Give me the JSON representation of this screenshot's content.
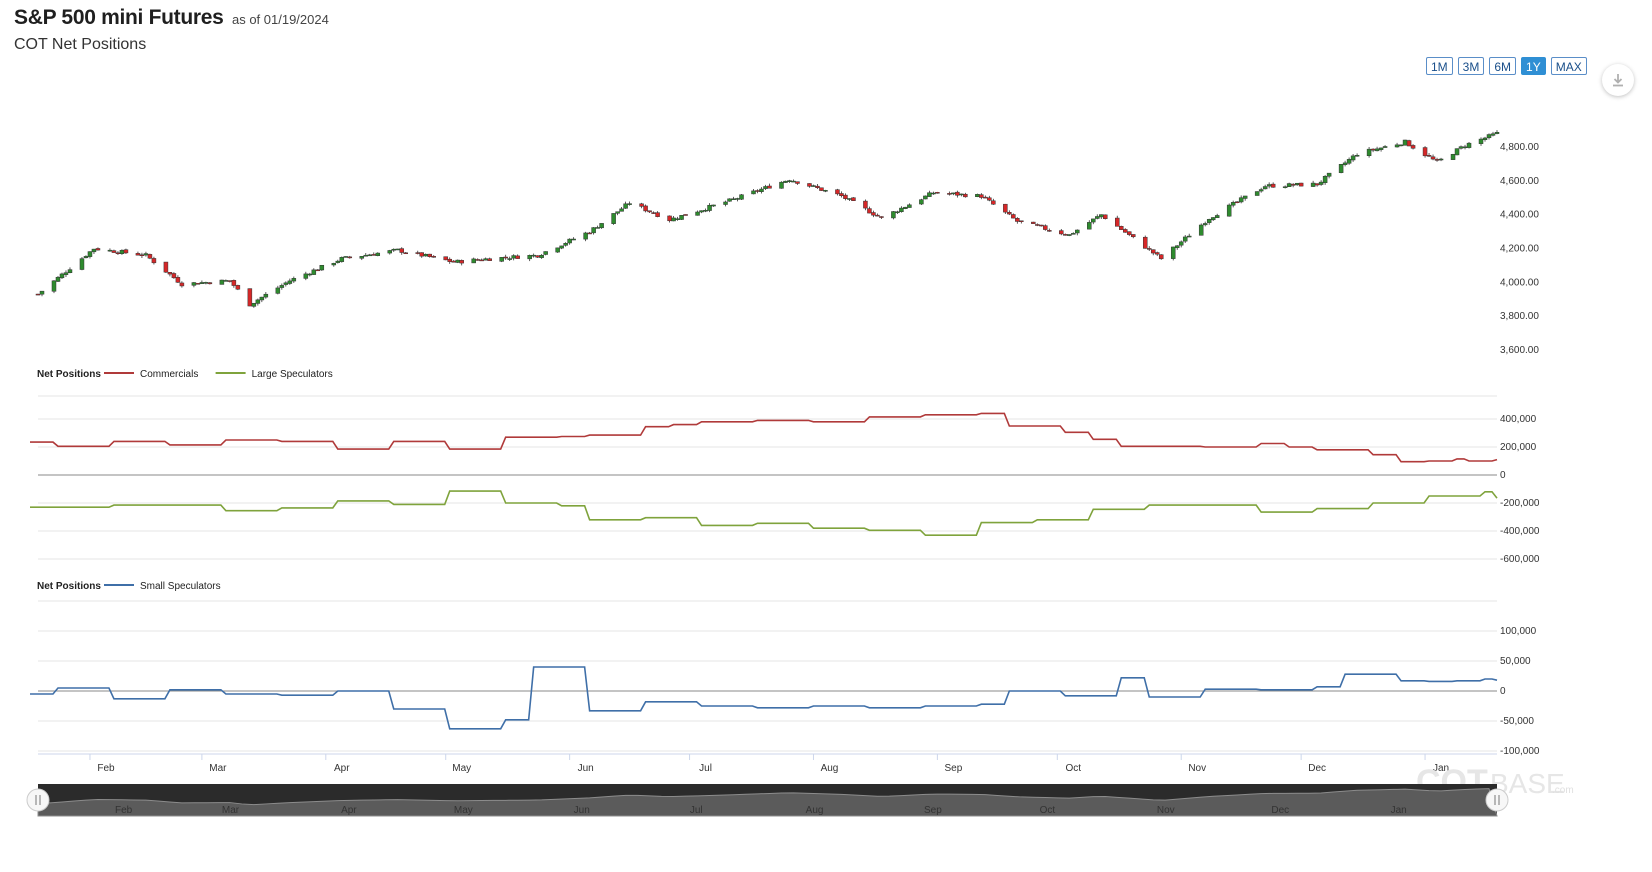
{
  "header": {
    "title": "S&P 500 mini Futures",
    "as_of": "as of 01/19/2024",
    "subtitle": "COT Net Positions"
  },
  "range_buttons": [
    {
      "label": "1M",
      "active": false
    },
    {
      "label": "3M",
      "active": false
    },
    {
      "label": "6M",
      "active": false
    },
    {
      "label": "1Y",
      "active": true
    },
    {
      "label": "MAX",
      "active": false
    }
  ],
  "watermark": {
    "main": "COT",
    "sub": "BASE",
    "suffix": ".com"
  },
  "colors": {
    "up_candle": "#2e8b2e",
    "down_candle": "#d62728",
    "commercials": "#b03a3a",
    "large_speculators": "#7fa33c",
    "small_speculators": "#3f6fa8",
    "navigator_fill": "#5b5b5b"
  },
  "chart_data": [
    {
      "type": "candlestick",
      "title": "",
      "y_ticks": [
        "4,800.00",
        "4,600.00",
        "4,400.00",
        "4,200.00",
        "4,000.00",
        "3,800.00",
        "3,600.00"
      ],
      "ylim": [
        3600,
        4900
      ],
      "x_range": [
        "2023-01-19",
        "2024-01-19"
      ],
      "closes": [
        {
          "date": "2023-01-19",
          "value": 3930
        },
        {
          "date": "2023-02-02",
          "value": 4200
        },
        {
          "date": "2023-02-15",
          "value": 4160
        },
        {
          "date": "2023-02-24",
          "value": 3990
        },
        {
          "date": "2023-03-08",
          "value": 4010
        },
        {
          "date": "2023-03-13",
          "value": 3870
        },
        {
          "date": "2023-03-23",
          "value": 4010
        },
        {
          "date": "2023-04-05",
          "value": 4140
        },
        {
          "date": "2023-04-19",
          "value": 4190
        },
        {
          "date": "2023-05-03",
          "value": 4120
        },
        {
          "date": "2023-05-12",
          "value": 4140
        },
        {
          "date": "2023-05-24",
          "value": 4160
        },
        {
          "date": "2023-06-06",
          "value": 4300
        },
        {
          "date": "2023-06-16",
          "value": 4470
        },
        {
          "date": "2023-06-26",
          "value": 4370
        },
        {
          "date": "2023-07-12",
          "value": 4490
        },
        {
          "date": "2023-07-26",
          "value": 4610
        },
        {
          "date": "2023-08-08",
          "value": 4510
        },
        {
          "date": "2023-08-18",
          "value": 4380
        },
        {
          "date": "2023-08-31",
          "value": 4530
        },
        {
          "date": "2023-09-12",
          "value": 4510
        },
        {
          "date": "2023-09-21",
          "value": 4360
        },
        {
          "date": "2023-10-04",
          "value": 4280
        },
        {
          "date": "2023-10-12",
          "value": 4400
        },
        {
          "date": "2023-10-27",
          "value": 4140
        },
        {
          "date": "2023-11-08",
          "value": 4380
        },
        {
          "date": "2023-11-22",
          "value": 4570
        },
        {
          "date": "2023-12-05",
          "value": 4580
        },
        {
          "date": "2023-12-15",
          "value": 4760
        },
        {
          "date": "2023-12-27",
          "value": 4830
        },
        {
          "date": "2024-01-04",
          "value": 4710
        },
        {
          "date": "2024-01-11",
          "value": 4810
        },
        {
          "date": "2024-01-19",
          "value": 4880
        }
      ]
    },
    {
      "type": "line",
      "legend_title": "Net Positions",
      "y_ticks": [
        "400,000",
        "200,000",
        "0",
        "-200,000",
        "-400,000",
        "-600,000"
      ],
      "ylim": [
        -600000,
        500000
      ],
      "series": [
        {
          "name": "Commercials",
          "color": "#b03a3a",
          "points": [
            {
              "date": "2023-01-17",
              "value": 235000
            },
            {
              "date": "2023-01-24",
              "value": 205000
            },
            {
              "date": "2023-02-07",
              "value": 240000
            },
            {
              "date": "2023-02-21",
              "value": 215000
            },
            {
              "date": "2023-03-07",
              "value": 250000
            },
            {
              "date": "2023-03-21",
              "value": 240000
            },
            {
              "date": "2023-04-04",
              "value": 185000
            },
            {
              "date": "2023-04-18",
              "value": 240000
            },
            {
              "date": "2023-05-02",
              "value": 185000
            },
            {
              "date": "2023-05-16",
              "value": 270000
            },
            {
              "date": "2023-05-30",
              "value": 275000
            },
            {
              "date": "2023-06-06",
              "value": 285000
            },
            {
              "date": "2023-06-20",
              "value": 345000
            },
            {
              "date": "2023-06-27",
              "value": 360000
            },
            {
              "date": "2023-07-04",
              "value": 380000
            },
            {
              "date": "2023-07-18",
              "value": 390000
            },
            {
              "date": "2023-08-01",
              "value": 380000
            },
            {
              "date": "2023-08-15",
              "value": 415000
            },
            {
              "date": "2023-08-29",
              "value": 430000
            },
            {
              "date": "2023-09-12",
              "value": 440000
            },
            {
              "date": "2023-09-19",
              "value": 350000
            },
            {
              "date": "2023-10-03",
              "value": 305000
            },
            {
              "date": "2023-10-10",
              "value": 255000
            },
            {
              "date": "2023-10-17",
              "value": 205000
            },
            {
              "date": "2023-11-07",
              "value": 200000
            },
            {
              "date": "2023-11-21",
              "value": 225000
            },
            {
              "date": "2023-11-28",
              "value": 200000
            },
            {
              "date": "2023-12-05",
              "value": 180000
            },
            {
              "date": "2023-12-19",
              "value": 145000
            },
            {
              "date": "2023-12-26",
              "value": 95000
            },
            {
              "date": "2024-01-02",
              "value": 100000
            },
            {
              "date": "2024-01-09",
              "value": 115000
            },
            {
              "date": "2024-01-12",
              "value": 100000
            },
            {
              "date": "2024-01-19",
              "value": 110000
            }
          ]
        },
        {
          "name": "Large Speculators",
          "color": "#7fa33c",
          "points": [
            {
              "date": "2023-01-17",
              "value": -230000
            },
            {
              "date": "2023-02-07",
              "value": -215000
            },
            {
              "date": "2023-03-07",
              "value": -255000
            },
            {
              "date": "2023-03-21",
              "value": -235000
            },
            {
              "date": "2023-04-04",
              "value": -185000
            },
            {
              "date": "2023-04-18",
              "value": -210000
            },
            {
              "date": "2023-05-02",
              "value": -115000
            },
            {
              "date": "2023-05-16",
              "value": -200000
            },
            {
              "date": "2023-05-30",
              "value": -220000
            },
            {
              "date": "2023-06-06",
              "value": -320000
            },
            {
              "date": "2023-06-20",
              "value": -305000
            },
            {
              "date": "2023-07-04",
              "value": -360000
            },
            {
              "date": "2023-07-18",
              "value": -345000
            },
            {
              "date": "2023-08-01",
              "value": -380000
            },
            {
              "date": "2023-08-15",
              "value": -395000
            },
            {
              "date": "2023-08-29",
              "value": -430000
            },
            {
              "date": "2023-09-12",
              "value": -340000
            },
            {
              "date": "2023-09-26",
              "value": -320000
            },
            {
              "date": "2023-10-10",
              "value": -245000
            },
            {
              "date": "2023-10-24",
              "value": -215000
            },
            {
              "date": "2023-11-07",
              "value": -215000
            },
            {
              "date": "2023-11-21",
              "value": -265000
            },
            {
              "date": "2023-12-05",
              "value": -240000
            },
            {
              "date": "2023-12-19",
              "value": -200000
            },
            {
              "date": "2024-01-02",
              "value": -150000
            },
            {
              "date": "2024-01-16",
              "value": -120000
            },
            {
              "date": "2024-01-19",
              "value": -165000
            }
          ]
        }
      ]
    },
    {
      "type": "line",
      "legend_title": "Net Positions",
      "y_ticks": [
        "100,000",
        "50,000",
        "0",
        "-50,000",
        "-100,000"
      ],
      "ylim": [
        -100000,
        150000
      ],
      "series": [
        {
          "name": "Small Speculators",
          "color": "#3f6fa8",
          "points": [
            {
              "date": "2023-01-17",
              "value": -5000
            },
            {
              "date": "2023-01-24",
              "value": 5000
            },
            {
              "date": "2023-02-07",
              "value": -13000
            },
            {
              "date": "2023-02-21",
              "value": 2000
            },
            {
              "date": "2023-03-07",
              "value": -5000
            },
            {
              "date": "2023-03-21",
              "value": -7000
            },
            {
              "date": "2023-04-04",
              "value": 0
            },
            {
              "date": "2023-04-18",
              "value": -30000
            },
            {
              "date": "2023-05-02",
              "value": -63000
            },
            {
              "date": "2023-05-16",
              "value": -48000
            },
            {
              "date": "2023-05-23",
              "value": 40000
            },
            {
              "date": "2023-06-06",
              "value": -33000
            },
            {
              "date": "2023-06-20",
              "value": -18000
            },
            {
              "date": "2023-07-04",
              "value": -25000
            },
            {
              "date": "2023-07-18",
              "value": -28000
            },
            {
              "date": "2023-08-01",
              "value": -25000
            },
            {
              "date": "2023-08-15",
              "value": -28000
            },
            {
              "date": "2023-08-29",
              "value": -25000
            },
            {
              "date": "2023-09-12",
              "value": -22000
            },
            {
              "date": "2023-09-19",
              "value": 0
            },
            {
              "date": "2023-10-03",
              "value": -8000
            },
            {
              "date": "2023-10-17",
              "value": 22000
            },
            {
              "date": "2023-10-24",
              "value": -10000
            },
            {
              "date": "2023-11-07",
              "value": 3000
            },
            {
              "date": "2023-11-21",
              "value": 2000
            },
            {
              "date": "2023-12-05",
              "value": 7000
            },
            {
              "date": "2023-12-12",
              "value": 28000
            },
            {
              "date": "2023-12-26",
              "value": 17000
            },
            {
              "date": "2024-01-02",
              "value": 16000
            },
            {
              "date": "2024-01-09",
              "value": 17000
            },
            {
              "date": "2024-01-16",
              "value": 20000
            },
            {
              "date": "2024-01-19",
              "value": 18000
            }
          ]
        }
      ]
    }
  ],
  "x_axis_labels": [
    "Feb",
    "Mar",
    "Apr",
    "May",
    "Jun",
    "Jul",
    "Aug",
    "Sep",
    "Oct",
    "Nov",
    "Dec",
    "Jan"
  ],
  "navigator_labels": [
    "Feb",
    "Mar",
    "Apr",
    "May",
    "Jun",
    "Jul",
    "Aug",
    "Sep",
    "Oct",
    "Nov",
    "Dec",
    "Jan"
  ]
}
